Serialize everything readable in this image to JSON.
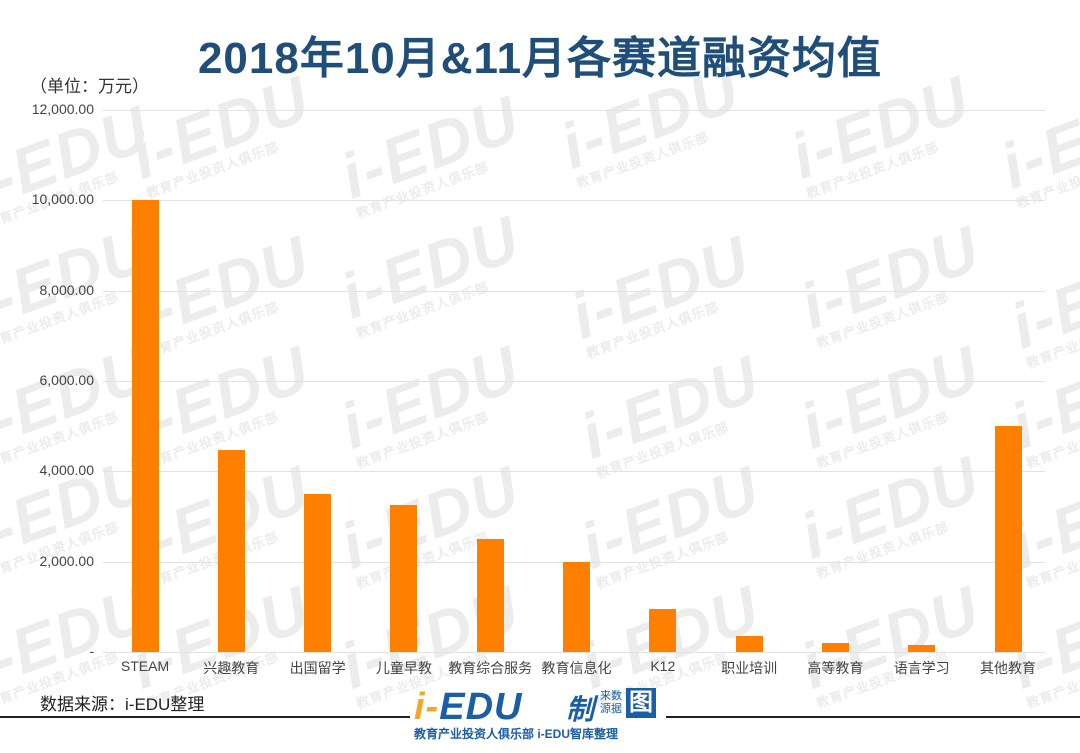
{
  "title": "2018年10月&11月各赛道融资均值",
  "unit_label": "（单位：万元）",
  "source": "数据来源：i-EDU整理",
  "logo": {
    "main_i": "i-",
    "main_rest": "EDU",
    "badge": "制",
    "small_top": "来数",
    "small_bottom": "源据",
    "tu": "图",
    "sub": "教育产业投资人俱乐部  i-EDU智库整理"
  },
  "watermark": {
    "text": "i-EDU",
    "sub": "教育产业投资人俱乐部"
  },
  "colors": {
    "bar": "#ff7f00",
    "title": "#1f4e79",
    "grid": "#e2e2e2"
  },
  "y_ticks": [
    "12,000.00",
    "10,000.00",
    "8,000.00",
    "6,000.00",
    "4,000.00",
    "2,000.00",
    "-"
  ],
  "chart_data": {
    "type": "bar",
    "title": "2018年10月&11月各赛道融资均值",
    "xlabel": "",
    "ylabel": "（单位：万元）",
    "ylim": [
      0,
      12000
    ],
    "grid": true,
    "legend": "none",
    "categories": [
      "STEAM",
      "兴趣教育",
      "出国留学",
      "儿童早教",
      "教育综合服务",
      "教育信息化",
      "K12",
      "职业培训",
      "高等教育",
      "语言学习",
      "其他教育"
    ],
    "values": [
      10000,
      4470,
      3500,
      3250,
      2500,
      2000,
      950,
      350,
      200,
      150,
      5000
    ],
    "y_tick_labels": [
      "-",
      "2,000.00",
      "4,000.00",
      "6,000.00",
      "8,000.00",
      "10,000.00",
      "12,000.00"
    ]
  }
}
